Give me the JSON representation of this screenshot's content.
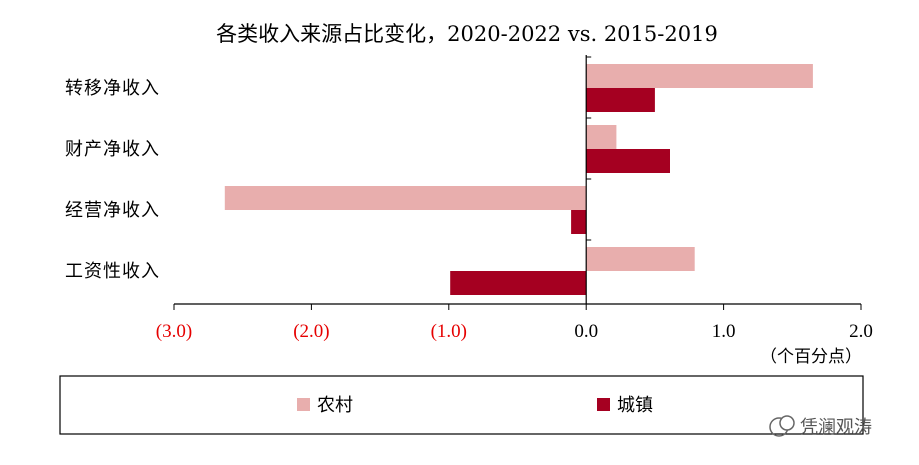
{
  "chart_data": {
    "type": "bar",
    "orientation": "horizontal",
    "title": "各类收入来源占比变化，2020-2022 vs. 2015-2019",
    "categories": [
      "转移净收入",
      "财产净收入",
      "经营净收入",
      "工资性收入"
    ],
    "series": [
      {
        "name": "农村",
        "color": "#E8AEAD",
        "values": [
          1.65,
          0.22,
          -2.63,
          0.79
        ]
      },
      {
        "name": "城镇",
        "color": "#A50021",
        "values": [
          0.5,
          0.61,
          -0.11,
          -0.99
        ]
      }
    ],
    "xlim": [
      -3.0,
      2.0
    ],
    "x_ticks": [
      -3.0,
      -2.0,
      -1.0,
      0.0,
      1.0,
      2.0
    ],
    "x_tick_labels": [
      "(3.0)",
      "(2.0)",
      "(1.0)",
      "0.0",
      "1.0",
      "2.0"
    ],
    "negative_tick_color": "#E60000",
    "unit_label": "（个百分点）",
    "legend_position": "bottom",
    "grid": false
  },
  "watermark": "凭澜观涛"
}
